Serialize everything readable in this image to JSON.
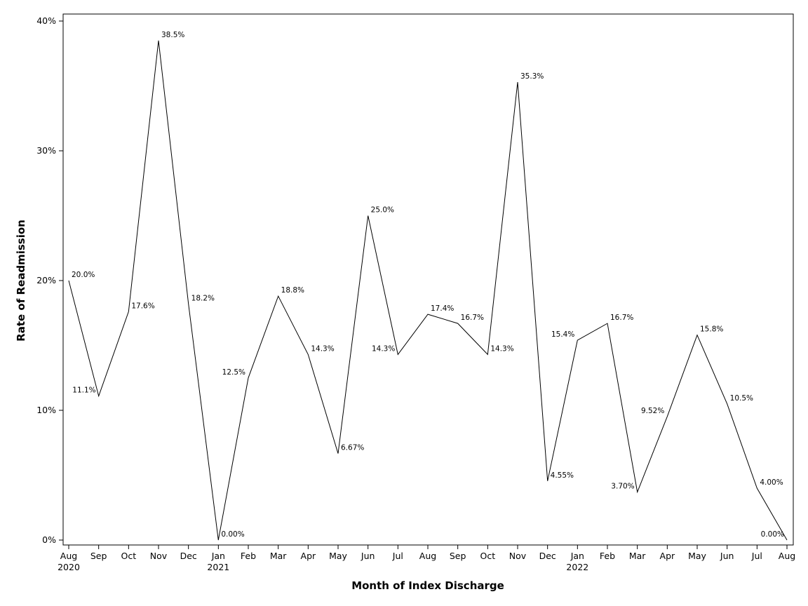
{
  "chart_data": {
    "type": "line",
    "title": "",
    "xlabel": "Month of Index Discharge",
    "ylabel": "Rate of Readmission",
    "x_tick_labels": [
      "Aug",
      "Sep",
      "Oct",
      "Nov",
      "Dec",
      "Jan",
      "Feb",
      "Mar",
      "Apr",
      "May",
      "Jun",
      "Jul",
      "Aug",
      "Sep",
      "Oct",
      "Nov",
      "Dec",
      "Jan",
      "Feb",
      "Mar",
      "Apr",
      "May",
      "Jun",
      "Jul",
      "Aug"
    ],
    "x_year_labels": [
      {
        "index": 0,
        "label": "2020"
      },
      {
        "index": 5,
        "label": "2021"
      },
      {
        "index": 17,
        "label": "2022"
      }
    ],
    "x": [
      "2020-08",
      "2020-09",
      "2020-10",
      "2020-11",
      "2020-12",
      "2021-01",
      "2021-02",
      "2021-03",
      "2021-04",
      "2021-05",
      "2021-06",
      "2021-07",
      "2021-08",
      "2021-09",
      "2021-10",
      "2021-11",
      "2021-12",
      "2022-01",
      "2022-02",
      "2022-03",
      "2022-04",
      "2022-05",
      "2022-06",
      "2022-07",
      "2022-08"
    ],
    "values": [
      20.0,
      11.1,
      17.6,
      38.5,
      18.2,
      0.0,
      12.5,
      18.8,
      14.3,
      6.67,
      25.0,
      14.3,
      17.4,
      16.7,
      14.3,
      35.3,
      4.55,
      15.4,
      16.7,
      3.7,
      9.52,
      15.8,
      10.5,
      4.0,
      0.0
    ],
    "data_labels": [
      "20.0%",
      "11.1%",
      "17.6%",
      "38.5%",
      "18.2%",
      "0.00%",
      "12.5%",
      "18.8%",
      "14.3%",
      "6.67%",
      "25.0%",
      "14.3%",
      "17.4%",
      "16.7%",
      "14.3%",
      "35.3%",
      "4.55%",
      "15.4%",
      "16.7%",
      "3.70%",
      "9.52%",
      "15.8%",
      "10.5%",
      "4.00%",
      "0.00%"
    ],
    "label_side": [
      "right",
      "left",
      "right",
      "right",
      "right",
      "right",
      "left",
      "right",
      "right",
      "right",
      "right",
      "left",
      "right",
      "right",
      "right",
      "right",
      "right",
      "left",
      "right",
      "left",
      "left",
      "right",
      "right",
      "right",
      "left"
    ],
    "y_ticks": [
      0,
      10,
      20,
      30,
      40
    ],
    "y_tick_labels": [
      "0%",
      "10%",
      "20%",
      "30%",
      "40%"
    ],
    "ylim": [
      0,
      40
    ],
    "grid": false,
    "line_color": "#000000"
  }
}
